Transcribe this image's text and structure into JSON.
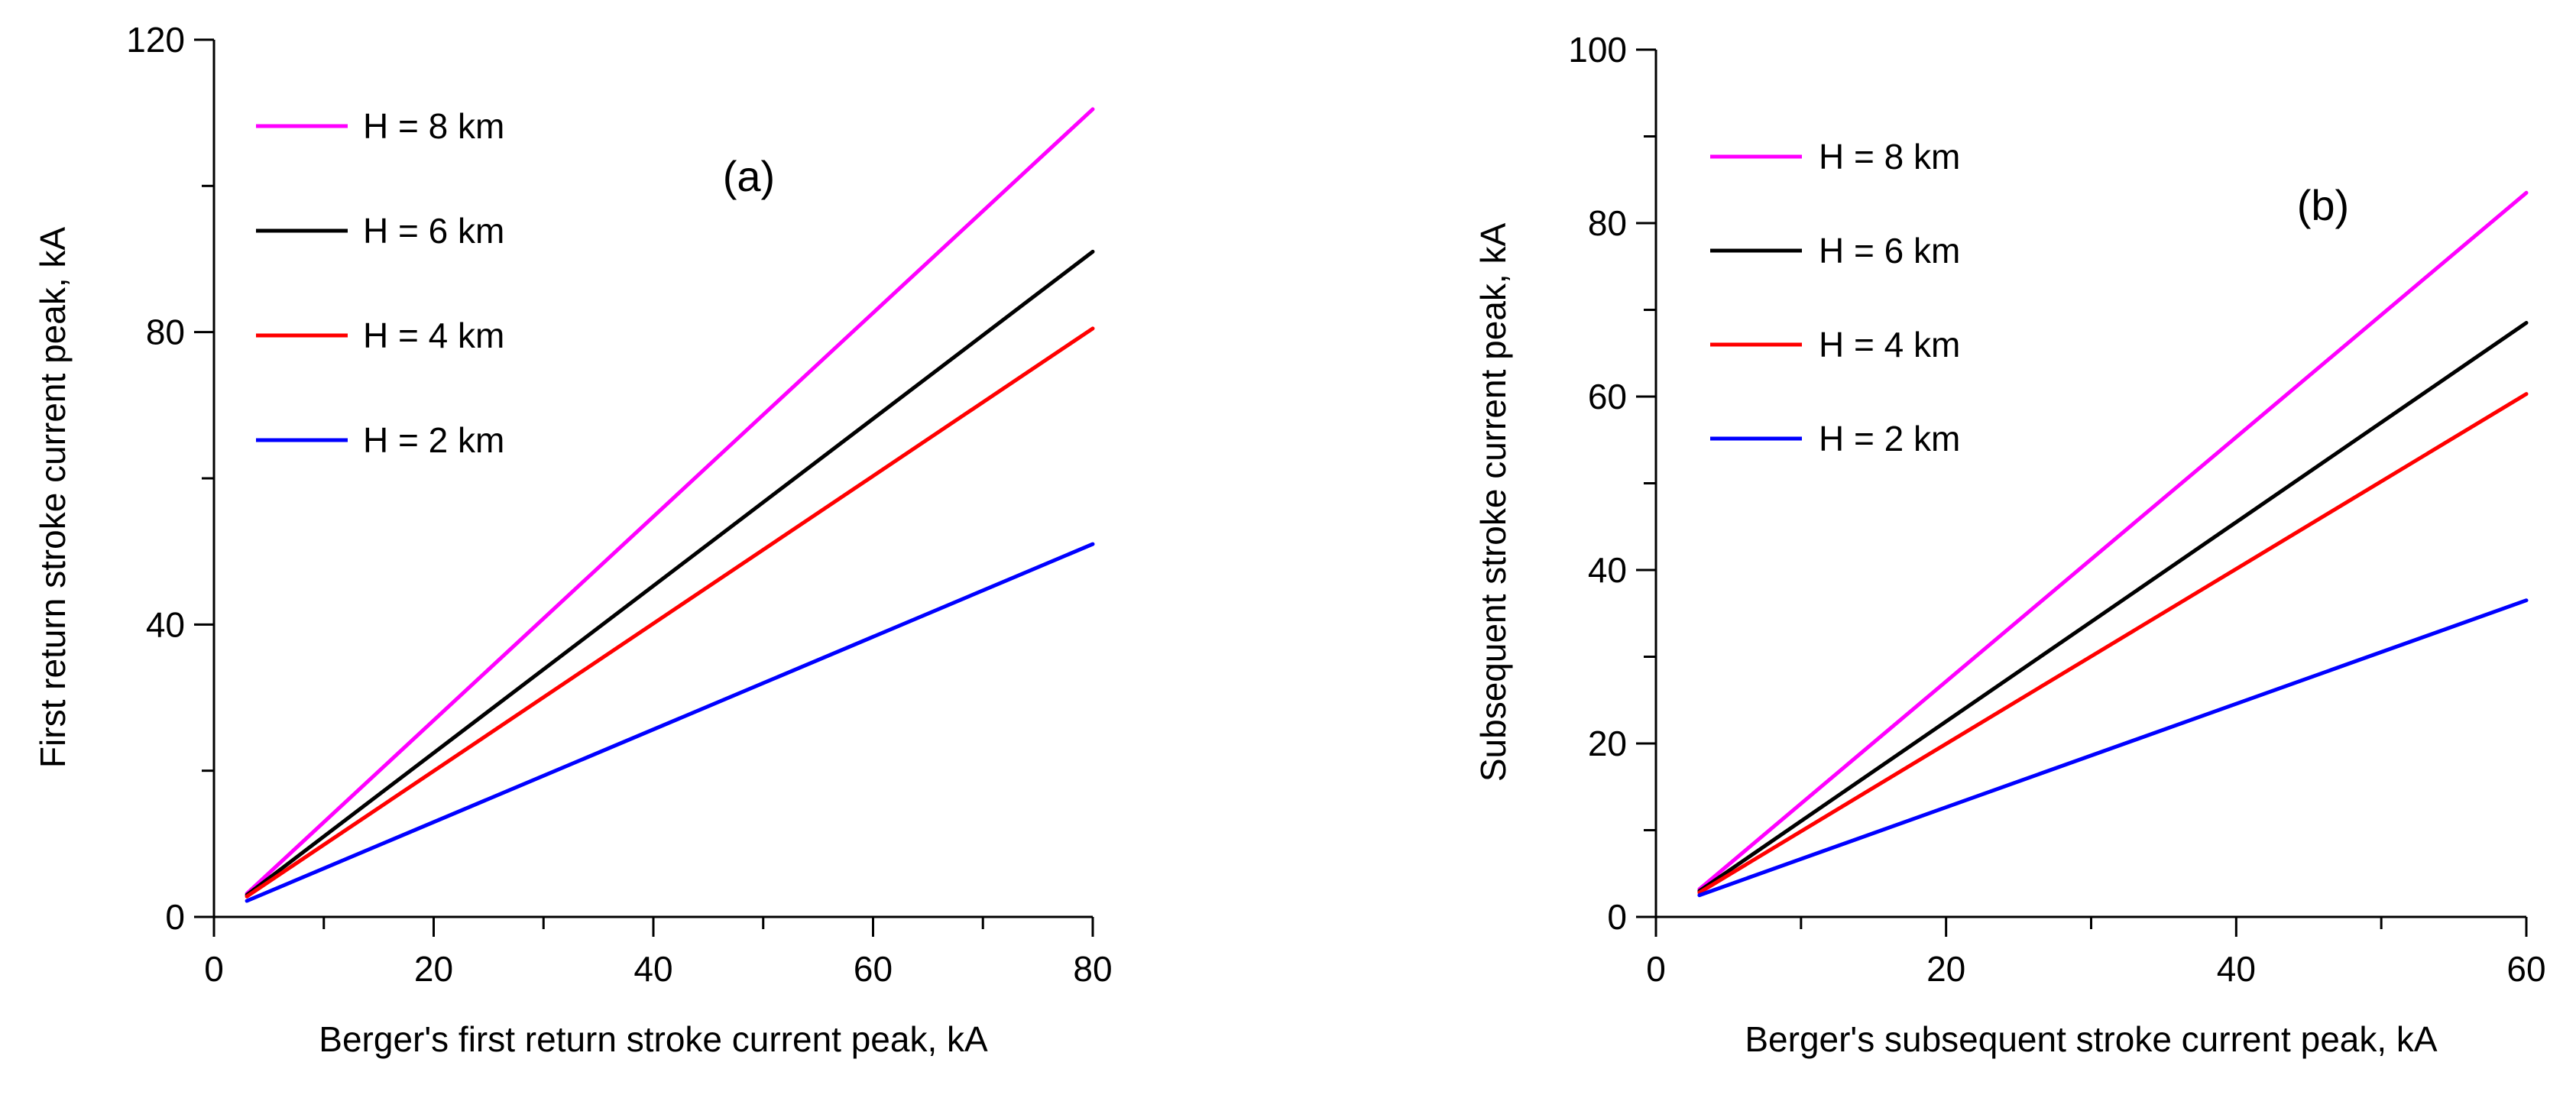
{
  "chart_data": [
    {
      "type": "line",
      "panel_label": "(a)",
      "xlabel": "Berger's first return stroke current peak, kA",
      "ylabel": "First return stroke current peak, kA",
      "xlim": [
        0,
        80
      ],
      "ylim": [
        0,
        120
      ],
      "xticks": [
        0,
        20,
        40,
        60,
        80
      ],
      "yticks": [
        0,
        40,
        80,
        120
      ],
      "x_minor_step": 10,
      "y_minor_step": 20,
      "legend_position": "top-left",
      "grid": false,
      "series": [
        {
          "name": "H = 8 km",
          "color": "#ff00ff",
          "x": [
            3,
            80
          ],
          "y": [
            3.2,
            110.5
          ]
        },
        {
          "name": "H = 6 km",
          "color": "#000000",
          "x": [
            3,
            80
          ],
          "y": [
            3.0,
            91
          ]
        },
        {
          "name": "H = 4 km",
          "color": "#ff0000",
          "x": [
            3,
            80
          ],
          "y": [
            2.8,
            80.5
          ]
        },
        {
          "name": "H = 2 km",
          "color": "#0000ff",
          "x": [
            3,
            80
          ],
          "y": [
            2.2,
            51
          ]
        }
      ]
    },
    {
      "type": "line",
      "panel_label": "(b)",
      "xlabel": "Berger's subsequent stroke current peak, kA",
      "ylabel": "Subsequent stroke current peak, kA",
      "xlim": [
        0,
        60
      ],
      "ylim": [
        0,
        100
      ],
      "xticks": [
        0,
        20,
        40,
        60
      ],
      "yticks": [
        0,
        20,
        40,
        60,
        80,
        100
      ],
      "x_minor_step": 10,
      "y_minor_step": 10,
      "legend_position": "top-left",
      "grid": false,
      "series": [
        {
          "name": "H = 8 km",
          "color": "#ff00ff",
          "x": [
            3,
            60
          ],
          "y": [
            3.2,
            83.5
          ]
        },
        {
          "name": "H = 6 km",
          "color": "#000000",
          "x": [
            3,
            60
          ],
          "y": [
            3.0,
            68.5
          ]
        },
        {
          "name": "H = 4 km",
          "color": "#ff0000",
          "x": [
            3,
            60
          ],
          "y": [
            2.8,
            60.3
          ]
        },
        {
          "name": "H = 2 km",
          "color": "#0000ff",
          "x": [
            3,
            60
          ],
          "y": [
            2.5,
            36.5
          ]
        }
      ]
    }
  ]
}
